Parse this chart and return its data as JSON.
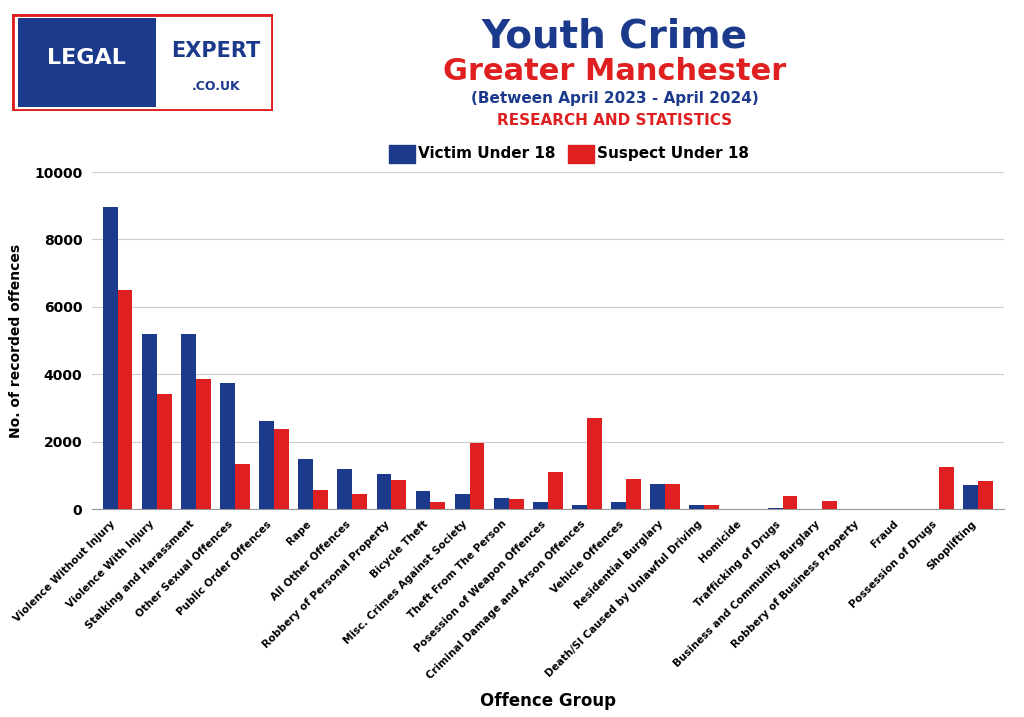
{
  "title1": "Youth Crime",
  "title2": "Greater Manchester",
  "title3": "(Between April 2023 - April 2024)",
  "title4": "RESEARCH AND STATISTICS",
  "xlabel": "Offence Group",
  "ylabel": "No. of recorded offences",
  "legend_blue": "Victim Under 18",
  "legend_red": "Suspect Under 18",
  "categories": [
    "Violence Without Injury",
    "Violence With Injury",
    "Stalking and Harassment",
    "Other Sexual Offences",
    "Public Order Offences",
    "Rape",
    "All Other Offences",
    "Robbery of Personal Property",
    "Bicycle Theft",
    "Misc. Crimes Against Society",
    "Theft From The Person",
    "Posession of Weapon Offences",
    "Criminal Damage and Arson Offences",
    "Vehicle Offences",
    "Residential Burglary",
    "Death/SI Caused by Unlawful Driving",
    "Homicide",
    "Trafficking of Drugs",
    "Business and Community Burglary",
    "Robbery of Business Property",
    "Fraud",
    "Possession of Drugs",
    "Shoplifting"
  ],
  "victim_u18": [
    8950,
    5200,
    5200,
    3750,
    2600,
    1500,
    1200,
    1050,
    550,
    450,
    320,
    200,
    130,
    200,
    750,
    130,
    15,
    20,
    10,
    10,
    10,
    10,
    700
  ],
  "suspect_u18": [
    6500,
    3400,
    3850,
    1350,
    2380,
    580,
    450,
    850,
    200,
    1950,
    300,
    1100,
    2700,
    900,
    750,
    130,
    10,
    380,
    240,
    10,
    10,
    1250,
    820
  ],
  "blue_color": "#1B3A8C",
  "red_color": "#E02020",
  "ylim": [
    0,
    10000
  ],
  "yticks": [
    0,
    2000,
    4000,
    6000,
    8000,
    10000
  ],
  "background_color": "#FFFFFF",
  "grid_color": "#CCCCCC",
  "title1_color": "#1B3A8C",
  "title2_color": "#E02020",
  "title3_color": "#1B3A8C",
  "title4_color": "#E02020",
  "legend_text_color": "#000000",
  "axis_label_color": "#000000"
}
